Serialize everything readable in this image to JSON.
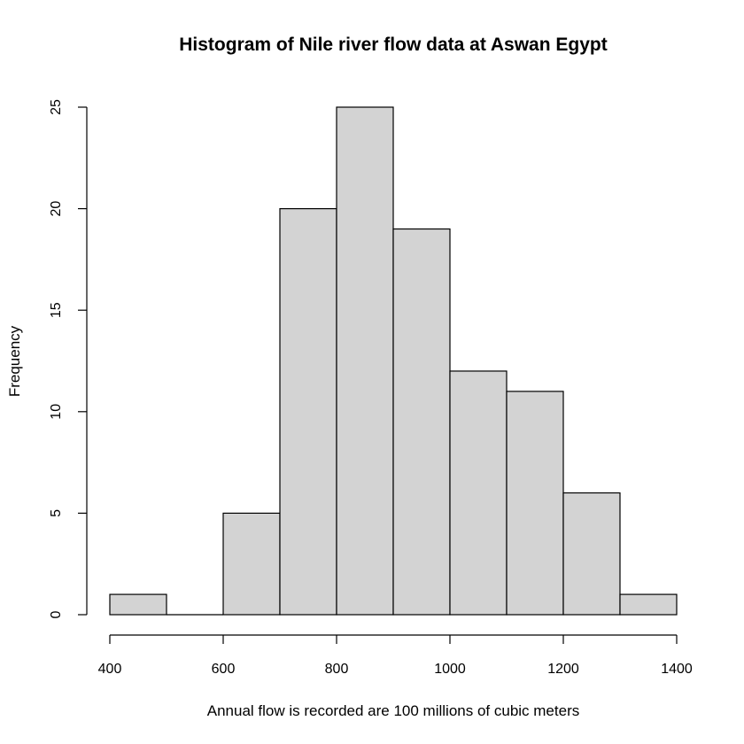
{
  "chart_data": {
    "type": "bar",
    "title": "Histogram of Nile river flow data at Aswan Egypt",
    "xlabel": "Annual flow is recorded are 100 millions of cubic meters",
    "ylabel": "Frequency",
    "bins": [
      {
        "from": 400,
        "to": 500,
        "count": 1
      },
      {
        "from": 500,
        "to": 600,
        "count": 0
      },
      {
        "from": 600,
        "to": 700,
        "count": 5
      },
      {
        "from": 700,
        "to": 800,
        "count": 20
      },
      {
        "from": 800,
        "to": 900,
        "count": 25
      },
      {
        "from": 900,
        "to": 1000,
        "count": 19
      },
      {
        "from": 1000,
        "to": 1100,
        "count": 12
      },
      {
        "from": 1100,
        "to": 1200,
        "count": 11
      },
      {
        "from": 1200,
        "to": 1300,
        "count": 6
      },
      {
        "from": 1300,
        "to": 1400,
        "count": 1
      }
    ],
    "xlim": [
      400,
      1400
    ],
    "ylim": [
      0,
      25
    ],
    "xticks": [
      400,
      600,
      800,
      1000,
      1200,
      1400
    ],
    "yticks": [
      0,
      5,
      10,
      15,
      20,
      25
    ],
    "bar_color": "#d3d3d3",
    "edge_color": "#000000",
    "grid": false,
    "legend": "none"
  }
}
